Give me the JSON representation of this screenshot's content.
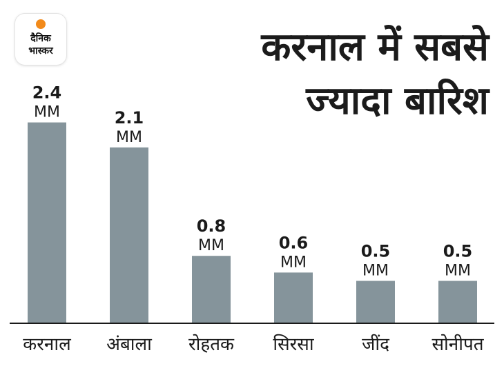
{
  "logo": {
    "line1": "दैनिक",
    "line2": "भास्कर"
  },
  "title_line1": "करनाल में सबसे",
  "title_line2": "ज्यादा बारिश",
  "chart_data": {
    "type": "bar",
    "categories": [
      "करनाल",
      "अंबाला",
      "रोहतक",
      "सिरसा",
      "जींद",
      "सोनीपत"
    ],
    "values": [
      2.4,
      2.1,
      0.8,
      0.6,
      0.5,
      0.5
    ],
    "value_labels": [
      "2.4",
      "2.1",
      "0.8",
      "0.6",
      "0.5",
      "0.5"
    ],
    "unit": "MM",
    "bar_color": "#85949b",
    "axis_color": "#1a1a1a",
    "ylim": [
      0,
      2.4
    ]
  }
}
